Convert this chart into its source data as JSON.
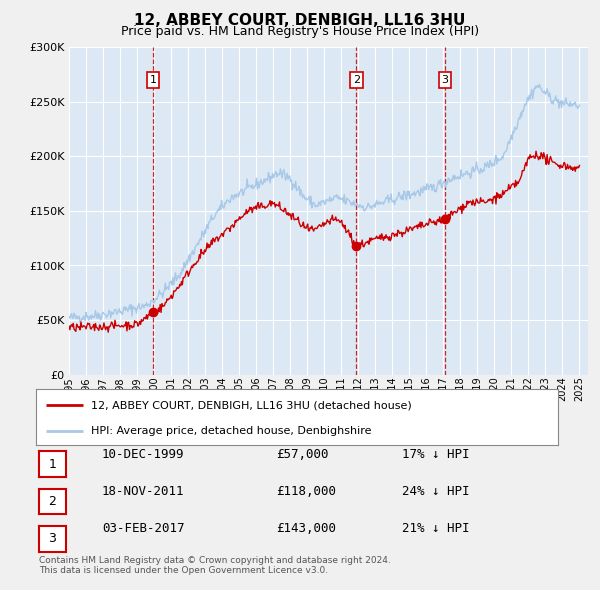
{
  "title": "12, ABBEY COURT, DENBIGH, LL16 3HU",
  "subtitle": "Price paid vs. HM Land Registry's House Price Index (HPI)",
  "hpi_color": "#a8c8e8",
  "price_color": "#cc0000",
  "plot_bg": "#dce9f5",
  "grid_color": "#ffffff",
  "fig_bg": "#f0f0f0",
  "legend_label_price": "12, ABBEY COURT, DENBIGH, LL16 3HU (detached house)",
  "legend_label_hpi": "HPI: Average price, detached house, Denbighshire",
  "sale_dates": [
    1999.94,
    2011.89,
    2017.09
  ],
  "sale_prices": [
    57000,
    118000,
    143000
  ],
  "sale_labels": [
    "1",
    "2",
    "3"
  ],
  "table_rows": [
    {
      "label": "1",
      "date": "10-DEC-1999",
      "price": "£57,000",
      "note": "17% ↓ HPI"
    },
    {
      "label": "2",
      "date": "18-NOV-2011",
      "price": "£118,000",
      "note": "24% ↓ HPI"
    },
    {
      "label": "3",
      "date": "03-FEB-2017",
      "price": "£143,000",
      "note": "21% ↓ HPI"
    }
  ],
  "footer": "Contains HM Land Registry data © Crown copyright and database right 2024.\nThis data is licensed under the Open Government Licence v3.0.",
  "ylim": [
    0,
    300000
  ],
  "yticks": [
    0,
    50000,
    100000,
    150000,
    200000,
    250000,
    300000
  ],
  "xlim_start": 1995.0,
  "xlim_end": 2025.5,
  "xticks": [
    1995,
    1996,
    1997,
    1998,
    1999,
    2000,
    2001,
    2002,
    2003,
    2004,
    2005,
    2006,
    2007,
    2008,
    2009,
    2010,
    2011,
    2012,
    2013,
    2014,
    2015,
    2016,
    2017,
    2018,
    2019,
    2020,
    2021,
    2022,
    2023,
    2024,
    2025
  ]
}
